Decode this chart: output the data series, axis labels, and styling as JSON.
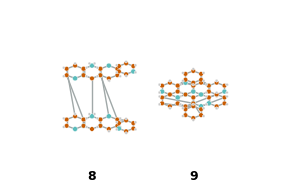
{
  "background_color": "#ffffff",
  "label_8": "8",
  "label_9": "9",
  "label_fontsize": 9,
  "label_fontweight": "bold",
  "figsize": [
    2.89,
    1.89
  ],
  "dpi": 100,
  "atom_colors": {
    "carbon": "#c85a00",
    "nitrogen": "#5abcbc",
    "hydrogen": "#c8c8c8"
  },
  "bond_color": "#a0a8a8",
  "C_r": 0.012,
  "N_r": 0.013,
  "H_r": 0.007,
  "bond_lw": 1.0
}
